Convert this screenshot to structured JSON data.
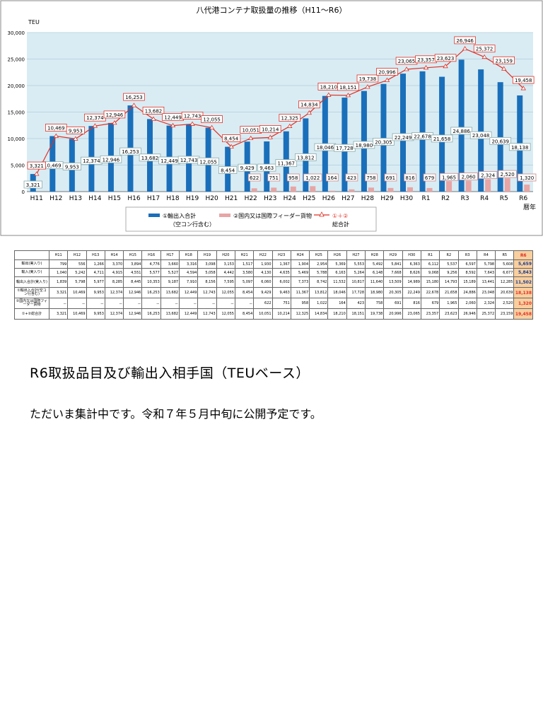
{
  "chart_data": {
    "type": "bar",
    "title": "八代港コンテナ取扱量の推移（H11～R6）",
    "ylabel": "TEU",
    "xlabel": "暦年",
    "ylim": [
      0,
      30000
    ],
    "yticks": [
      "0",
      "5,000",
      "10,000",
      "15,000",
      "20,000",
      "25,000",
      "30,000"
    ],
    "grid": true,
    "legend_position": "bottom",
    "categories": [
      "H11",
      "H12",
      "H13",
      "H14",
      "H15",
      "H16",
      "H17",
      "H18",
      "H19",
      "H20",
      "H21",
      "H22",
      "H23",
      "H24",
      "H25",
      "H26",
      "H27",
      "H28",
      "H29",
      "H30",
      "R1",
      "R2",
      "R3",
      "R4",
      "R5",
      "R6"
    ],
    "series": [
      {
        "name": "①輸出入合計",
        "name_note": "（空コン行含む）",
        "type": "bar",
        "color": "#1a6fba",
        "values": [
          3321,
          10469,
          9953,
          12374,
          12946,
          16253,
          13682,
          12449,
          12743,
          12055,
          8454,
          9429,
          9463,
          11367,
          13812,
          18046,
          17728,
          18980,
          20305,
          22249,
          22678,
          21658,
          24886,
          23048,
          20639,
          18138
        ]
      },
      {
        "name": "②国内又は国際フィーダー貨物",
        "type": "bar",
        "color": "#e7a5a5",
        "values": [
          null,
          null,
          null,
          null,
          null,
          null,
          null,
          null,
          null,
          null,
          null,
          622,
          751,
          958,
          1022,
          164,
          423,
          758,
          691,
          816,
          679,
          1965,
          2060,
          2324,
          2520,
          1320
        ]
      },
      {
        "name": "①＋②",
        "name_note": "総合計",
        "type": "line",
        "color": "#e03024",
        "values": [
          3321,
          10469,
          9953,
          12374,
          12946,
          16253,
          13682,
          12449,
          12743,
          12055,
          8454,
          10051,
          10214,
          12325,
          14834,
          18210,
          18151,
          19738,
          20996,
          23065,
          23357,
          23623,
          26946,
          25372,
          23159,
          19458
        ]
      }
    ],
    "series1_labels": [
      "3,321",
      "10,469",
      "9,953",
      "12,374",
      "12,946",
      "16,253",
      "13,682",
      "12,449",
      "12,743",
      "12,055",
      "8,454",
      "9,429",
      "9,463",
      "11,367",
      "13,812",
      "18,046",
      "17,728",
      "18,980",
      "20,305",
      "22,249",
      "22,678",
      "21,658",
      "24,886",
      "23,048",
      "20,639",
      "18,138"
    ],
    "series2_labels": [
      "",
      "",
      "",
      "",
      "",
      "",
      "",
      "",
      "",
      "",
      "",
      "622",
      "751",
      "958",
      "1,022",
      "164",
      "423",
      "758",
      "691",
      "816",
      "679",
      "1,965",
      "2,060",
      "2,324",
      "2,520",
      "1,320"
    ],
    "total_labels": [
      "3,321",
      "10,469",
      "9,953",
      "12,374",
      "12,946",
      "16,253",
      "13,682",
      "12,449",
      "12,743",
      "12,055",
      "8,454",
      "10,051",
      "10,214",
      "12,325",
      "14,834",
      "18,210",
      "18,151",
      "19,738",
      "20,996",
      "23,065",
      "23,357",
      "23,623",
      "26,946",
      "25,372",
      "23,159",
      "19,458"
    ]
  },
  "table": {
    "headers": [
      "H11",
      "H12",
      "H13",
      "H14",
      "H15",
      "H16",
      "H17",
      "H18",
      "H19",
      "H20",
      "H21",
      "H22",
      "H23",
      "H24",
      "H25",
      "H26",
      "H27",
      "H28",
      "H29",
      "H30",
      "R1",
      "R2",
      "R3",
      "R4",
      "R5",
      "R6"
    ],
    "rows": [
      {
        "label": "輸出(実入り)",
        "cells": [
          "799",
          "556",
          "1,266",
          "3,370",
          "3,894",
          "4,776",
          "3,660",
          "3,316",
          "3,098",
          "3,153",
          "1,517",
          "1,930",
          "1,367",
          "1,904",
          "2,954",
          "5,369",
          "5,553",
          "5,492",
          "5,841",
          "6,363",
          "6,112",
          "5,537",
          "6,597",
          "5,798",
          "5,608",
          "5,659"
        ],
        "style": "blue"
      },
      {
        "label": "輸入(実入り)",
        "cells": [
          "1,040",
          "5,242",
          "4,711",
          "4,915",
          "4,551",
          "5,577",
          "5,527",
          "4,594",
          "5,058",
          "4,442",
          "3,580",
          "4,130",
          "4,635",
          "5,469",
          "5,788",
          "6,163",
          "5,264",
          "6,148",
          "7,668",
          "8,626",
          "9,068",
          "9,256",
          "8,592",
          "7,643",
          "6,677",
          "5,843"
        ],
        "style": "blue"
      },
      {
        "label": "輸出入合計(実入り)",
        "cells": [
          "1,839",
          "5,798",
          "5,977",
          "8,285",
          "8,445",
          "10,353",
          "9,187",
          "7,910",
          "8,156",
          "7,595",
          "5,097",
          "6,060",
          "6,002",
          "7,373",
          "8,742",
          "11,532",
          "10,817",
          "11,640",
          "13,509",
          "14,989",
          "15,180",
          "14,793",
          "15,189",
          "13,441",
          "12,285",
          "11,502"
        ],
        "style": "blue"
      },
      {
        "label": "①輸出入合計(空コン行含む)",
        "cells": [
          "3,321",
          "10,469",
          "9,953",
          "12,374",
          "12,946",
          "16,253",
          "13,682",
          "12,449",
          "12,743",
          "12,055",
          "8,454",
          "9,429",
          "9,463",
          "11,367",
          "13,812",
          "18,046",
          "17,728",
          "18,980",
          "20,305",
          "22,249",
          "22,678",
          "21,658",
          "24,886",
          "23,048",
          "20,639",
          "18,138"
        ],
        "style": "red"
      },
      {
        "label": "②国内又は国際フィーダー貨物",
        "cells": [
          "－",
          "－",
          "－",
          "－",
          "－",
          "－",
          "－",
          "－",
          "－",
          "－",
          "－",
          "622",
          "751",
          "958",
          "1,022",
          "164",
          "423",
          "758",
          "691",
          "816",
          "679",
          "1,965",
          "2,060",
          "2,324",
          "2,520",
          "1,320"
        ],
        "style": "red"
      },
      {
        "label": "①+②総合計",
        "cells": [
          "3,321",
          "10,469",
          "9,953",
          "12,374",
          "12,946",
          "16,253",
          "13,682",
          "12,449",
          "12,743",
          "12,055",
          "8,454",
          "10,051",
          "10,214",
          "12,325",
          "14,834",
          "18,210",
          "18,151",
          "19,738",
          "20,996",
          "23,065",
          "23,357",
          "23,623",
          "26,946",
          "25,372",
          "23,159",
          "19,458"
        ],
        "style": "red"
      }
    ]
  },
  "section": {
    "heading": "R6取扱品目及び輸出入相手国（TEUベース）",
    "note": "ただいま集計中です。令和７年５月中旬に公開予定です。"
  }
}
